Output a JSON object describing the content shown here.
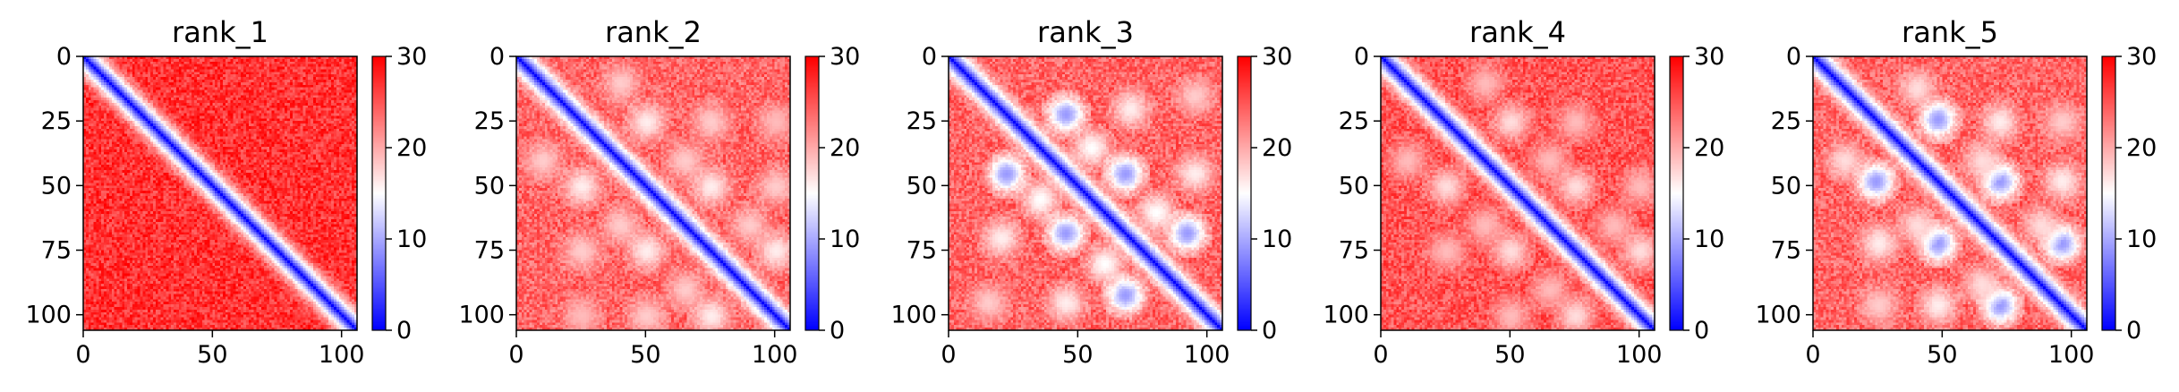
{
  "chart_data": [
    {
      "type": "heatmap",
      "title": "rank_1",
      "matrix_size": 106,
      "xlim": [
        0,
        106
      ],
      "ylim": [
        106,
        0
      ],
      "x_ticks": [
        0,
        50,
        100
      ],
      "y_ticks": [
        0,
        25,
        50,
        75,
        100
      ],
      "colorbar": {
        "min": 0,
        "max": 30,
        "ticks": [
          0,
          10,
          20,
          30
        ],
        "colormap": "bwr"
      },
      "pattern": {
        "diagonal_band_width": 6,
        "background_value": 27,
        "off_diagonal_spots": []
      }
    },
    {
      "type": "heatmap",
      "title": "rank_2",
      "matrix_size": 106,
      "xlim": [
        0,
        106
      ],
      "ylim": [
        106,
        0
      ],
      "x_ticks": [
        0,
        50,
        100
      ],
      "y_ticks": [
        0,
        25,
        50,
        75,
        100
      ],
      "colorbar": {
        "min": 0,
        "max": 30,
        "ticks": [
          0,
          10,
          20,
          30
        ],
        "colormap": "bwr"
      },
      "pattern": {
        "diagonal_band_width": 6,
        "background_value": 24,
        "off_diagonal_spots": [
          {
            "i": 25,
            "j": 50,
            "value": 16
          },
          {
            "i": 50,
            "j": 75,
            "value": 16
          },
          {
            "i": 75,
            "j": 100,
            "value": 16
          },
          {
            "i": 25,
            "j": 75,
            "value": 18
          },
          {
            "i": 50,
            "j": 100,
            "value": 18
          },
          {
            "i": 25,
            "j": 100,
            "value": 19
          },
          {
            "i": 10,
            "j": 40,
            "value": 18
          },
          {
            "i": 40,
            "j": 65,
            "value": 18
          },
          {
            "i": 65,
            "j": 90,
            "value": 18
          }
        ]
      }
    },
    {
      "type": "heatmap",
      "title": "rank_3",
      "matrix_size": 106,
      "xlim": [
        0,
        106
      ],
      "ylim": [
        106,
        0
      ],
      "x_ticks": [
        0,
        50,
        100
      ],
      "y_ticks": [
        0,
        25,
        50,
        75,
        100
      ],
      "colorbar": {
        "min": 0,
        "max": 30,
        "ticks": [
          0,
          10,
          20,
          30
        ],
        "colormap": "bwr"
      },
      "pattern": {
        "diagonal_band_width": 6,
        "background_value": 24,
        "off_diagonal_spots": [
          {
            "i": 22,
            "j": 45,
            "value": 9
          },
          {
            "i": 45,
            "j": 68,
            "value": 9
          },
          {
            "i": 68,
            "j": 92,
            "value": 9
          },
          {
            "i": 20,
            "j": 70,
            "value": 16
          },
          {
            "i": 45,
            "j": 95,
            "value": 16
          },
          {
            "i": 15,
            "j": 95,
            "value": 18
          },
          {
            "i": 35,
            "j": 55,
            "value": 15
          },
          {
            "i": 60,
            "j": 80,
            "value": 15
          }
        ]
      }
    },
    {
      "type": "heatmap",
      "title": "rank_4",
      "matrix_size": 106,
      "xlim": [
        0,
        106
      ],
      "ylim": [
        106,
        0
      ],
      "x_ticks": [
        0,
        50,
        100
      ],
      "y_ticks": [
        0,
        25,
        50,
        75,
        100
      ],
      "colorbar": {
        "min": 0,
        "max": 30,
        "ticks": [
          0,
          10,
          20,
          30
        ],
        "colormap": "bwr"
      },
      "pattern": {
        "diagonal_band_width": 6,
        "background_value": 25,
        "off_diagonal_spots": [
          {
            "i": 25,
            "j": 50,
            "value": 17
          },
          {
            "i": 50,
            "j": 75,
            "value": 17
          },
          {
            "i": 75,
            "j": 100,
            "value": 17
          },
          {
            "i": 25,
            "j": 75,
            "value": 19
          },
          {
            "i": 50,
            "j": 100,
            "value": 19
          },
          {
            "i": 10,
            "j": 40,
            "value": 19
          },
          {
            "i": 40,
            "j": 65,
            "value": 19
          },
          {
            "i": 65,
            "j": 90,
            "value": 19
          }
        ]
      }
    },
    {
      "type": "heatmap",
      "title": "rank_5",
      "matrix_size": 106,
      "xlim": [
        0,
        106
      ],
      "ylim": [
        106,
        0
      ],
      "x_ticks": [
        0,
        50,
        100
      ],
      "y_ticks": [
        0,
        25,
        50,
        75,
        100
      ],
      "colorbar": {
        "min": 0,
        "max": 30,
        "ticks": [
          0,
          10,
          20,
          30
        ],
        "colormap": "bwr"
      },
      "pattern": {
        "diagonal_band_width": 6,
        "background_value": 24,
        "off_diagonal_spots": [
          {
            "i": 24,
            "j": 48,
            "value": 9
          },
          {
            "i": 48,
            "j": 72,
            "value": 9
          },
          {
            "i": 72,
            "j": 96,
            "value": 9
          },
          {
            "i": 25,
            "j": 72,
            "value": 16
          },
          {
            "i": 48,
            "j": 96,
            "value": 16
          },
          {
            "i": 12,
            "j": 40,
            "value": 17
          },
          {
            "i": 40,
            "j": 65,
            "value": 17
          },
          {
            "i": 65,
            "j": 88,
            "value": 17
          },
          {
            "i": 25,
            "j": 96,
            "value": 18
          }
        ]
      }
    }
  ]
}
